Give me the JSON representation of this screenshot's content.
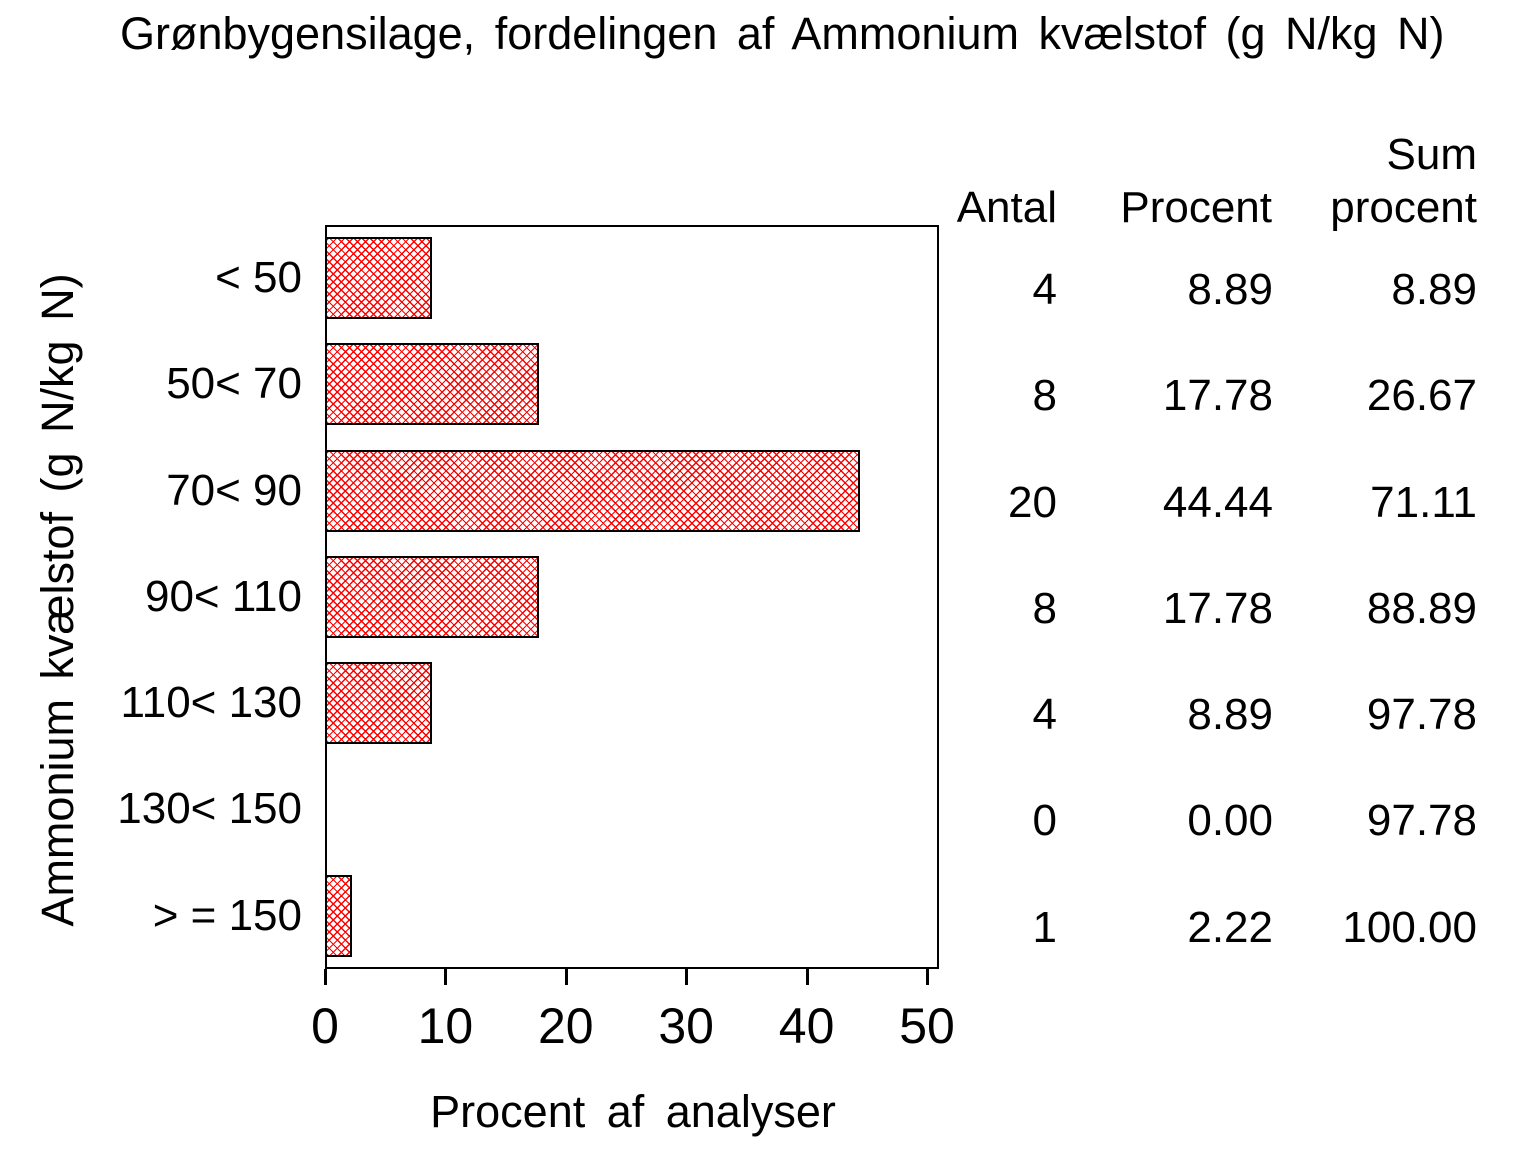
{
  "title": "Grønbygensilage, fordelingen af Ammonium kvælstof (g N/kg N)",
  "chart_data": {
    "type": "bar",
    "orientation": "horizontal",
    "title": "Grønbygensilage, fordelingen af Ammonium kvælstof (g N/kg N)",
    "categories": [
      "< 50",
      "50< 70",
      "70< 90",
      "90< 110",
      "110< 130",
      "130< 150",
      "> = 150"
    ],
    "values": [
      8.89,
      17.78,
      44.44,
      17.78,
      8.89,
      0,
      2.22
    ],
    "xlabel": "Procent af analyser",
    "ylabel": "Ammonium kvælstof (g N/kg N)",
    "xlim": [
      0,
      50
    ],
    "xticks": [
      0,
      10,
      20,
      30,
      40,
      50
    ],
    "grid": false,
    "legend": false,
    "bar_hatch_color": "#ff0000",
    "bar_outline_color": "#000000"
  },
  "table": {
    "headers": {
      "antal": "Antal",
      "procent": "Procent",
      "sum_line1": "Sum",
      "sum_line2": "procent"
    },
    "rows": [
      {
        "antal": "4",
        "procent": "8.89",
        "sum": "8.89"
      },
      {
        "antal": "8",
        "procent": "17.78",
        "sum": "26.67"
      },
      {
        "antal": "20",
        "procent": "44.44",
        "sum": "71.11"
      },
      {
        "antal": "8",
        "procent": "17.78",
        "sum": "88.89"
      },
      {
        "antal": "4",
        "procent": "8.89",
        "sum": "97.78"
      },
      {
        "antal": "0",
        "procent": "0.00",
        "sum": "97.78"
      },
      {
        "antal": "1",
        "procent": "2.22",
        "sum": "100.00"
      }
    ]
  }
}
